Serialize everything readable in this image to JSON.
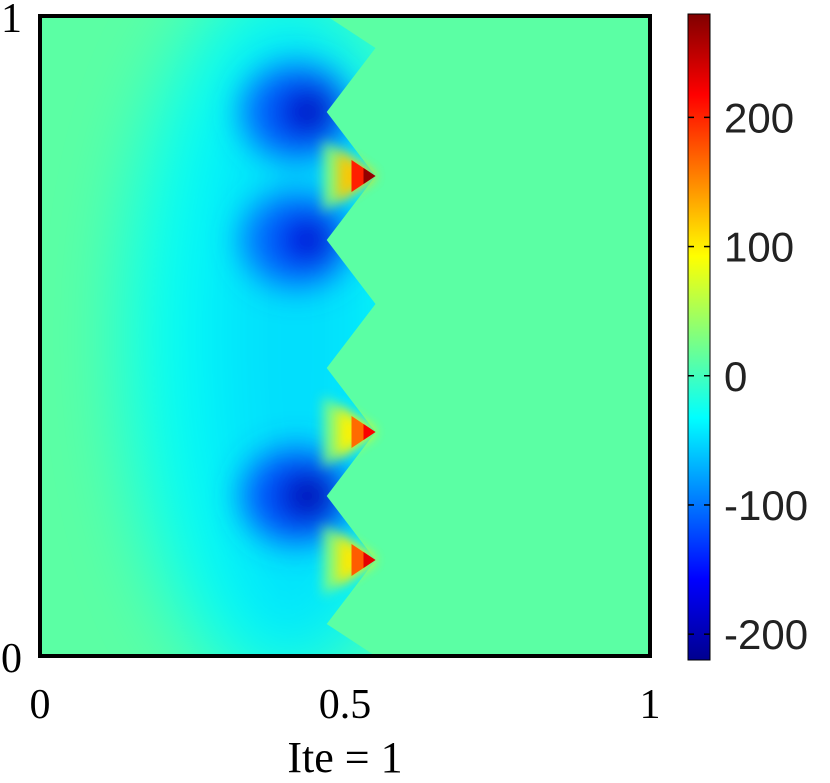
{
  "chart_data": {
    "type": "heatmap",
    "title": "",
    "xlabel": "Ite = 1",
    "ylabel": "",
    "xlim": [
      0,
      1
    ],
    "ylim": [
      0,
      1
    ],
    "x_ticks": [
      {
        "value": 0,
        "label": "0"
      },
      {
        "value": 0.5,
        "label": "0.5"
      },
      {
        "value": 1,
        "label": "1"
      }
    ],
    "y_ticks": [
      {
        "value": 0,
        "label": "0"
      },
      {
        "value": 1,
        "label": "1"
      }
    ],
    "colorbar": {
      "colormap": "jet",
      "range": [
        -220,
        280
      ],
      "ticks": [
        {
          "value": -200,
          "label": "-200"
        },
        {
          "value": -100,
          "label": "-100"
        },
        {
          "value": 0,
          "label": "0"
        },
        {
          "value": 100,
          "label": "100"
        },
        {
          "value": 200,
          "label": "200"
        }
      ]
    },
    "background_value": 12,
    "interface": [
      [
        0.47,
        1.0
      ],
      [
        0.55,
        0.95
      ],
      [
        0.47,
        0.85
      ],
      [
        0.55,
        0.75
      ],
      [
        0.47,
        0.65
      ],
      [
        0.55,
        0.55
      ],
      [
        0.47,
        0.45
      ],
      [
        0.55,
        0.35
      ],
      [
        0.47,
        0.25
      ],
      [
        0.55,
        0.15
      ],
      [
        0.47,
        0.05
      ],
      [
        0.55,
        0.0
      ]
    ],
    "features": [
      {
        "kind": "trough",
        "x": 0.45,
        "y": 0.85,
        "value": -210
      },
      {
        "kind": "peak",
        "x": 0.53,
        "y": 0.75,
        "value": 270
      },
      {
        "kind": "trough",
        "x": 0.45,
        "y": 0.65,
        "value": -200
      },
      {
        "kind": "peak",
        "x": 0.53,
        "y": 0.35,
        "value": 220
      },
      {
        "kind": "trough",
        "x": 0.45,
        "y": 0.25,
        "value": -220
      },
      {
        "kind": "peak",
        "x": 0.53,
        "y": 0.15,
        "value": 230
      }
    ]
  }
}
